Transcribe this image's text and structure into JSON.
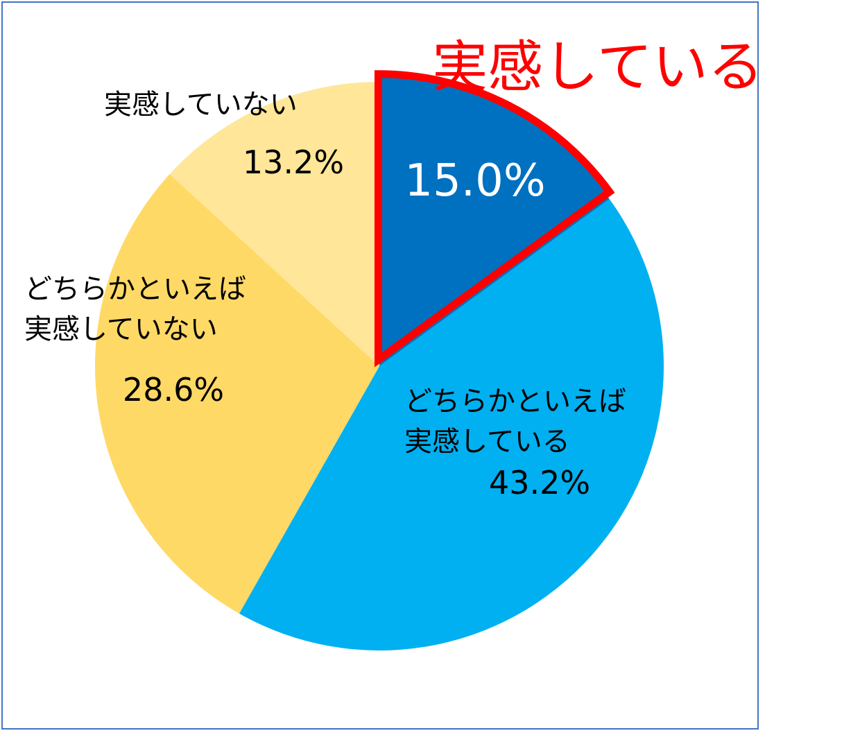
{
  "chart_data": {
    "type": "pie",
    "title": "",
    "start_angle_deg": 0,
    "direction": "clockwise",
    "slices": [
      {
        "name": "実感している",
        "value": 15.0,
        "value_label": "15.0%",
        "color": "#0070C0",
        "outline": "#FF0000",
        "text_color": "#ffffff",
        "highlight": true
      },
      {
        "name": "どちらかといえば\n実感している",
        "value": 43.2,
        "value_label": "43.2%",
        "color": "#00B0F0",
        "text_color": "#000000"
      },
      {
        "name": "どちらかといえば\n実感していない",
        "value": 28.6,
        "value_label": "28.6%",
        "color": "#FFD966",
        "text_color": "#000000"
      },
      {
        "name": "実感していない",
        "value": 13.2,
        "value_label": "13.2%",
        "color": "#FFE699",
        "text_color": "#000000"
      }
    ],
    "callout": {
      "text": "実感している",
      "color": "#FF0000"
    }
  }
}
